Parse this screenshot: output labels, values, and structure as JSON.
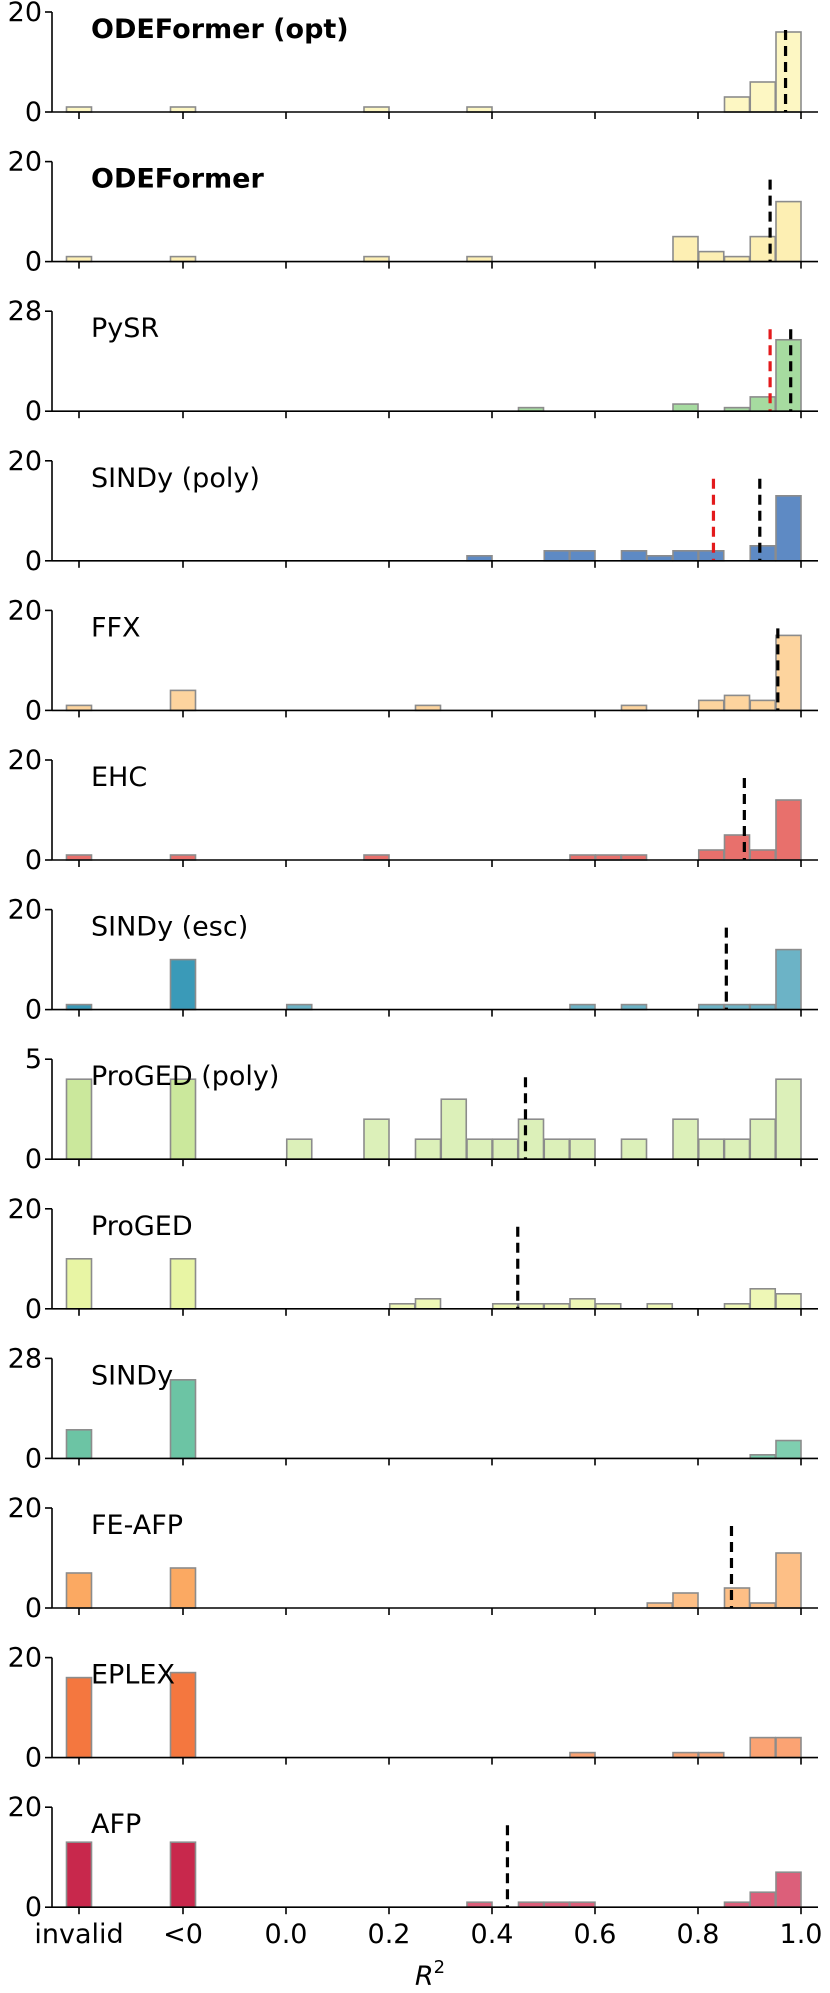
{
  "chart_data": {
    "type": "bar",
    "figure_kind": "stacked histogram panels of R² per method",
    "xlabel": "R",
    "xlabel_superscript": "2",
    "x_tick_labels": [
      "invalid",
      "<0",
      "0.0",
      "0.2",
      "0.4",
      "0.6",
      "0.8",
      "1.0"
    ],
    "bin_note": "bars at 'invalid' and '<0' are count bins for invalid / negative R²; remaining bars are 0.05-wide bins over R² in [0, 1]",
    "panels": [
      {
        "name": "ODEFormer (opt)",
        "bold": true,
        "color": "#fdf7c3",
        "ymax": 20,
        "invalid": 1,
        "negative": 1,
        "bins": [
          {
            "x": 0.2,
            "v": 1
          },
          {
            "x": 0.4,
            "v": 1
          },
          {
            "x": 0.9,
            "v": 3
          },
          {
            "x": 0.95,
            "v": 6
          },
          {
            "x": 1.0,
            "v": 16
          }
        ],
        "medians": [
          {
            "x": 0.97,
            "color": "#000000"
          }
        ]
      },
      {
        "name": "ODEFormer",
        "bold": true,
        "color": "#fdefb3",
        "ymax": 20,
        "invalid": 1,
        "negative": 1,
        "bins": [
          {
            "x": 0.2,
            "v": 1
          },
          {
            "x": 0.4,
            "v": 1
          },
          {
            "x": 0.8,
            "v": 5
          },
          {
            "x": 0.85,
            "v": 2
          },
          {
            "x": 0.9,
            "v": 1
          },
          {
            "x": 0.95,
            "v": 5
          },
          {
            "x": 1.0,
            "v": 12
          }
        ],
        "medians": [
          {
            "x": 0.94,
            "color": "#000000"
          }
        ]
      },
      {
        "name": "PySR",
        "bold": false,
        "color": "#a6dba0",
        "ymax": 28,
        "invalid": 0,
        "negative": 0,
        "bins": [
          {
            "x": 0.5,
            "v": 1
          },
          {
            "x": 0.8,
            "v": 2
          },
          {
            "x": 0.9,
            "v": 1
          },
          {
            "x": 0.95,
            "v": 4
          },
          {
            "x": 1.0,
            "v": 20
          }
        ],
        "medians": [
          {
            "x": 0.94,
            "color": "#e31a1c"
          },
          {
            "x": 0.98,
            "color": "#000000"
          }
        ]
      },
      {
        "name": "SINDy (poly)",
        "bold": false,
        "color": "#5e8ac4",
        "ymax": 20,
        "invalid": 0,
        "negative": 0,
        "bins": [
          {
            "x": 0.4,
            "v": 1
          },
          {
            "x": 0.55,
            "v": 2
          },
          {
            "x": 0.6,
            "v": 2
          },
          {
            "x": 0.7,
            "v": 2
          },
          {
            "x": 0.75,
            "v": 1
          },
          {
            "x": 0.8,
            "v": 2
          },
          {
            "x": 0.85,
            "v": 2
          },
          {
            "x": 0.95,
            "v": 3
          },
          {
            "x": 1.0,
            "v": 13
          }
        ],
        "medians": [
          {
            "x": 0.83,
            "color": "#e31a1c"
          },
          {
            "x": 0.92,
            "color": "#000000"
          }
        ]
      },
      {
        "name": "FFX",
        "bold": false,
        "color": "#fdd49e",
        "ymax": 20,
        "invalid": 1,
        "negative": 4,
        "bins": [
          {
            "x": 0.3,
            "v": 1
          },
          {
            "x": 0.7,
            "v": 1
          },
          {
            "x": 0.85,
            "v": 2
          },
          {
            "x": 0.9,
            "v": 3
          },
          {
            "x": 0.95,
            "v": 2
          },
          {
            "x": 1.0,
            "v": 15
          }
        ],
        "medians": [
          {
            "x": 0.955,
            "color": "#000000"
          }
        ]
      },
      {
        "name": "EHC",
        "bold": false,
        "color": "#e8706c",
        "ymax": 20,
        "invalid": 1,
        "negative": 1,
        "bins": [
          {
            "x": 0.2,
            "v": 1
          },
          {
            "x": 0.6,
            "v": 1
          },
          {
            "x": 0.65,
            "v": 1
          },
          {
            "x": 0.7,
            "v": 1
          },
          {
            "x": 0.85,
            "v": 2
          },
          {
            "x": 0.9,
            "v": 5
          },
          {
            "x": 0.95,
            "v": 2
          },
          {
            "x": 1.0,
            "v": 12
          }
        ],
        "medians": [
          {
            "x": 0.89,
            "color": "#000000"
          }
        ]
      },
      {
        "name": "SINDy (esc)",
        "bold": false,
        "color": "#6cb3c6",
        "negColor": "#3a9ab8",
        "ymax": 20,
        "invalid": 1,
        "negative": 10,
        "bins": [
          {
            "x": 0.05,
            "v": 1
          },
          {
            "x": 0.6,
            "v": 1
          },
          {
            "x": 0.7,
            "v": 1
          },
          {
            "x": 0.85,
            "v": 1
          },
          {
            "x": 0.9,
            "v": 1
          },
          {
            "x": 0.95,
            "v": 1
          },
          {
            "x": 1.0,
            "v": 12
          }
        ],
        "medians": [
          {
            "x": 0.855,
            "color": "#000000"
          }
        ]
      },
      {
        "name": "ProGED (poly)",
        "bold": false,
        "color": "#dcf0b9",
        "negColor": "#cbe89c",
        "ymax": 5,
        "invalid": 4,
        "negative": 4,
        "bins": [
          {
            "x": 0.05,
            "v": 1
          },
          {
            "x": 0.2,
            "v": 2
          },
          {
            "x": 0.3,
            "v": 1
          },
          {
            "x": 0.35,
            "v": 3
          },
          {
            "x": 0.4,
            "v": 1
          },
          {
            "x": 0.45,
            "v": 1
          },
          {
            "x": 0.5,
            "v": 2
          },
          {
            "x": 0.55,
            "v": 1
          },
          {
            "x": 0.6,
            "v": 1
          },
          {
            "x": 0.7,
            "v": 1
          },
          {
            "x": 0.8,
            "v": 2
          },
          {
            "x": 0.85,
            "v": 1
          },
          {
            "x": 0.9,
            "v": 1
          },
          {
            "x": 0.95,
            "v": 2
          },
          {
            "x": 1.0,
            "v": 4
          }
        ],
        "medians": [
          {
            "x": 0.465,
            "color": "#000000"
          }
        ]
      },
      {
        "name": "ProGED",
        "bold": false,
        "color": "#eef7b6",
        "negColor": "#e8f5a4",
        "ymax": 20,
        "invalid": 10,
        "negative": 10,
        "bins": [
          {
            "x": 0.25,
            "v": 1
          },
          {
            "x": 0.3,
            "v": 2
          },
          {
            "x": 0.45,
            "v": 1
          },
          {
            "x": 0.5,
            "v": 1
          },
          {
            "x": 0.55,
            "v": 1
          },
          {
            "x": 0.6,
            "v": 2
          },
          {
            "x": 0.65,
            "v": 1
          },
          {
            "x": 0.75,
            "v": 1
          },
          {
            "x": 0.9,
            "v": 1
          },
          {
            "x": 0.95,
            "v": 4
          },
          {
            "x": 1.0,
            "v": 3
          }
        ],
        "medians": [
          {
            "x": 0.45,
            "color": "#000000"
          }
        ]
      },
      {
        "name": "SINDy",
        "bold": false,
        "color": "#7fcfb0",
        "negColor": "#6cc4a4",
        "ymax": 28,
        "invalid": 8,
        "negative": 22,
        "bins": [
          {
            "x": 0.95,
            "v": 1
          },
          {
            "x": 1.0,
            "v": 5
          }
        ],
        "medians": []
      },
      {
        "name": "FE-AFP",
        "bold": false,
        "color": "#fdbf86",
        "negColor": "#fba962",
        "ymax": 20,
        "invalid": 7,
        "negative": 8,
        "bins": [
          {
            "x": 0.75,
            "v": 1
          },
          {
            "x": 0.8,
            "v": 3
          },
          {
            "x": 0.9,
            "v": 4
          },
          {
            "x": 0.95,
            "v": 1
          },
          {
            "x": 1.0,
            "v": 11
          }
        ],
        "medians": [
          {
            "x": 0.865,
            "color": "#000000"
          }
        ]
      },
      {
        "name": "EPLEX",
        "bold": false,
        "color": "#fba373",
        "negColor": "#f4773f",
        "ymax": 20,
        "invalid": 16,
        "negative": 17,
        "bins": [
          {
            "x": 0.6,
            "v": 1
          },
          {
            "x": 0.8,
            "v": 1
          },
          {
            "x": 0.85,
            "v": 1
          },
          {
            "x": 0.95,
            "v": 4
          },
          {
            "x": 1.0,
            "v": 4
          }
        ],
        "medians": []
      },
      {
        "name": "AFP",
        "bold": false,
        "color": "#dc5f7a",
        "negColor": "#c8284c",
        "ymax": 20,
        "invalid": 13,
        "negative": 13,
        "bins": [
          {
            "x": 0.4,
            "v": 1
          },
          {
            "x": 0.5,
            "v": 1
          },
          {
            "x": 0.55,
            "v": 1
          },
          {
            "x": 0.6,
            "v": 1
          },
          {
            "x": 0.9,
            "v": 1
          },
          {
            "x": 0.95,
            "v": 3
          },
          {
            "x": 1.0,
            "v": 7
          }
        ],
        "medians": [
          {
            "x": 0.43,
            "color": "#000000"
          }
        ]
      }
    ]
  }
}
